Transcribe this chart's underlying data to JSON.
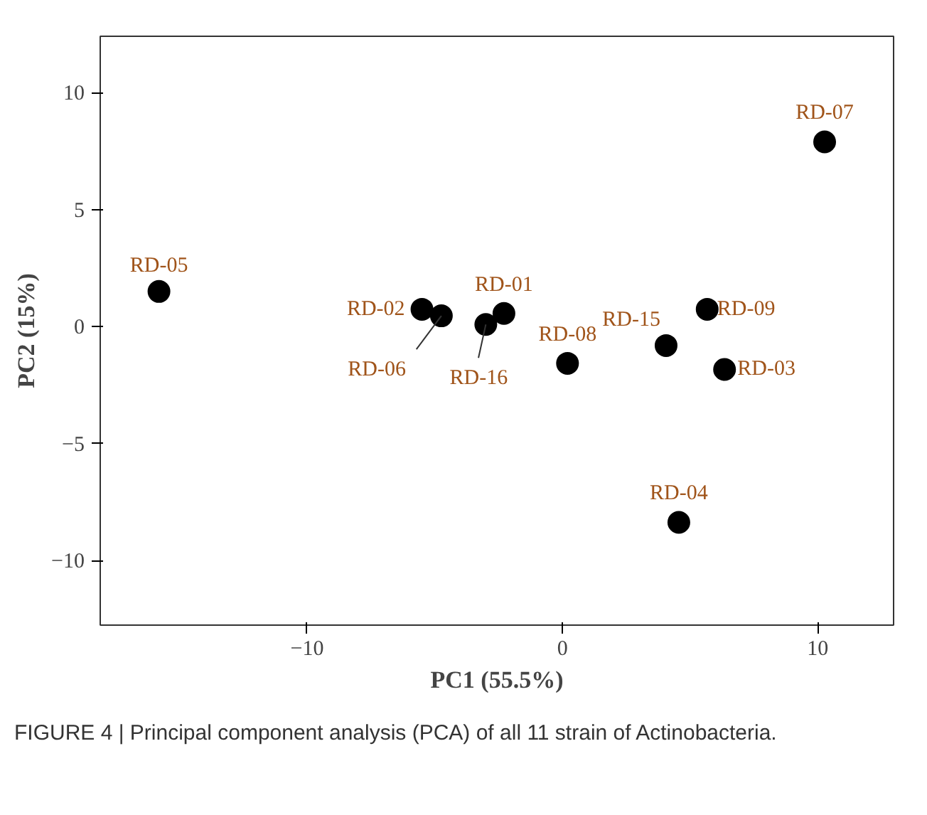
{
  "chart_data": {
    "type": "scatter",
    "xlabel": "PC1 (55.5%)",
    "ylabel": "PC2 (15%)",
    "x": [
      -15.8,
      -5.5,
      -4.74,
      -3.0,
      -2.29,
      0.2,
      4.06,
      5.67,
      6.35,
      4.56,
      10.27
    ],
    "series": [
      {
        "color": "#000000",
        "values": [
          1.5,
          0.74,
          0.46,
          0.09,
          0.56,
          -1.57,
          -0.81,
          0.74,
          -1.83,
          -8.36,
          7.89
        ],
        "value_labels": [
          "RD-05",
          "RD-02",
          "RD-06",
          "RD-16",
          "RD-01",
          "RD-08",
          "RD-15",
          "RD-09",
          "RD-03",
          "RD-04",
          "RD-07"
        ]
      }
    ],
    "xlim": [
      -18.1,
      12.97
    ],
    "ylim": [
      -12.75,
      12.4
    ],
    "xticks": [
      -10,
      0,
      10
    ],
    "yticks": [
      -10,
      -5,
      0,
      5,
      10
    ],
    "grid": false,
    "marker": "circle",
    "annotations": [
      "FIGURE 4 | Principal component analysis (PCA) of all 11 strain of Actinobacteria."
    ]
  }
}
